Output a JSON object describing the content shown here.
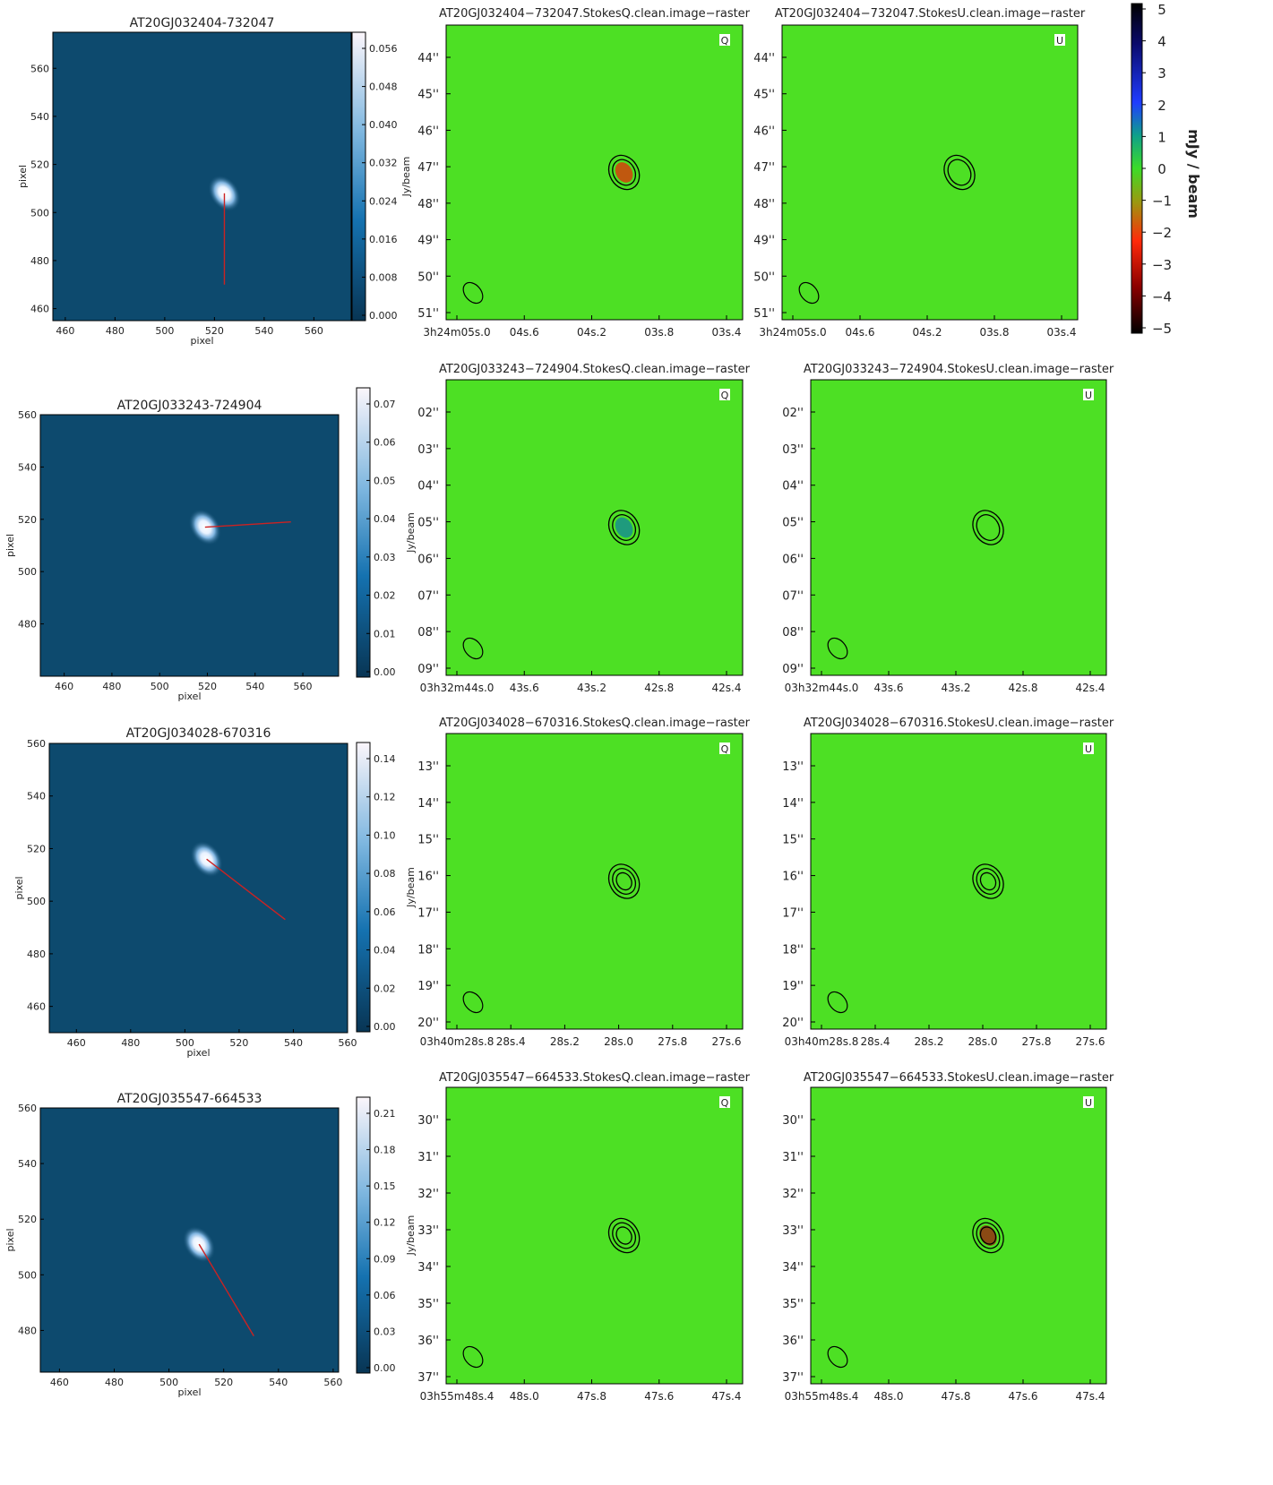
{
  "figure": {
    "colorbar_label": "mJy / beam",
    "colorbar_ticks": [
      "5",
      "4",
      "3",
      "2",
      "1",
      "0",
      "−1",
      "−2",
      "−3",
      "−4",
      "−5"
    ],
    "pixel_label": "pixel",
    "jy_label": "Jy/beam",
    "q_badge": "Q",
    "u_badge": "U"
  },
  "rows": [
    {
      "source": "AT20GJ032404-732047",
      "left": {
        "title": "AT20GJ032404-732047",
        "xticks": [
          "460",
          "480",
          "500",
          "520",
          "540",
          "560"
        ],
        "yticks": [
          "560",
          "540",
          "520",
          "500",
          "480",
          "460"
        ],
        "cbar_ticks": [
          "0.056",
          "0.048",
          "0.040",
          "0.032",
          "0.024",
          "0.016",
          "0.008",
          "0.000"
        ]
      },
      "q_title": "AT20GJ032404−732047.StokesQ.clean.image−raster",
      "u_title": "AT20GJ032404−732047.StokesU.clean.image−raster",
      "dec_ticks": [
        "44''",
        "45''",
        "46''",
        "47''",
        "48''",
        "49''",
        "50''",
        "51''"
      ],
      "ra_ticks": [
        "3h24m05s.0",
        "04s.6",
        "04s.2",
        "03s.8",
        "03s.4"
      ]
    },
    {
      "source": "AT20GJ033243-724904",
      "left": {
        "title": "AT20GJ033243-724904",
        "xticks": [
          "460",
          "480",
          "500",
          "520",
          "540",
          "560"
        ],
        "yticks": [
          "560",
          "540",
          "520",
          "500",
          "480"
        ],
        "cbar_ticks": [
          "0.07",
          "0.06",
          "0.05",
          "0.04",
          "0.03",
          "0.02",
          "0.01",
          "0.00"
        ]
      },
      "q_title": "AT20GJ033243−724904.StokesQ.clean.image−raster",
      "u_title": "AT20GJ033243−724904.StokesU.clean.image−raster",
      "dec_ticks": [
        "02''",
        "03''",
        "04''",
        "05''",
        "06''",
        "07''",
        "08''",
        "09''"
      ],
      "ra_ticks": [
        "03h32m44s.0",
        "43s.6",
        "43s.2",
        "42s.8",
        "42s.4"
      ]
    },
    {
      "source": "AT20GJ034028-670316",
      "left": {
        "title": "AT20GJ034028-670316",
        "xticks": [
          "460",
          "480",
          "500",
          "520",
          "540",
          "560"
        ],
        "yticks": [
          "560",
          "540",
          "520",
          "500",
          "480",
          "460"
        ],
        "cbar_ticks": [
          "0.14",
          "0.12",
          "0.10",
          "0.08",
          "0.06",
          "0.04",
          "0.02",
          "0.00"
        ]
      },
      "q_title": "AT20GJ034028−670316.StokesQ.clean.image−raster",
      "u_title": "AT20GJ034028−670316.StokesU.clean.image−raster",
      "dec_ticks": [
        "13''",
        "14''",
        "15''",
        "16''",
        "17''",
        "18''",
        "19''",
        "20''"
      ],
      "ra_ticks": [
        "03h40m28s.8",
        "28s.4",
        "28s.2",
        "28s.0",
        "27s.8",
        "27s.6"
      ]
    },
    {
      "source": "AT20GJ035547-664533",
      "left": {
        "title": "AT20GJ035547-664533",
        "xticks": [
          "460",
          "480",
          "500",
          "520",
          "540",
          "560"
        ],
        "yticks": [
          "560",
          "540",
          "520",
          "500",
          "480"
        ],
        "cbar_ticks": [
          "0.21",
          "0.18",
          "0.15",
          "0.12",
          "0.09",
          "0.06",
          "0.03",
          "0.00"
        ]
      },
      "q_title": "AT20GJ035547−664533.StokesQ.clean.image−raster",
      "u_title": "AT20GJ035547−664533.StokesU.clean.image−raster",
      "dec_ticks": [
        "30''",
        "31''",
        "32''",
        "33''",
        "34''",
        "35''",
        "36''",
        "37''"
      ],
      "ra_ticks": [
        "03h55m48s.4",
        "48s.0",
        "47s.8",
        "47s.6",
        "47s.4"
      ]
    }
  ],
  "colors": {
    "map_background": "#0d4a6e",
    "stokes_background": "#4de024",
    "source_core": "#ffffff",
    "vector": "#cc2222",
    "contour": "#000000",
    "q_core_row1": "#c0580f",
    "q_core_row2": "#1f9b7d",
    "u_core_row4": "#8a4a14"
  },
  "chart_data": [
    {
      "type": "heatmap",
      "title": "AT20GJ032404-732047",
      "xlabel": "pixel",
      "ylabel": "pixel",
      "xlim": [
        455,
        575
      ],
      "ylim": [
        455,
        575
      ],
      "source_peak": {
        "x": 524,
        "y": 508
      },
      "vector_end": {
        "x": 524,
        "y": 470
      },
      "cbar_label": "Jy/beam",
      "cbar_range": [
        0,
        0.06
      ]
    },
    {
      "type": "heatmap",
      "title": "AT20GJ033243-724904",
      "xlabel": "pixel",
      "ylabel": "pixel",
      "xlim": [
        450,
        575
      ],
      "ylim": [
        460,
        560
      ],
      "source_peak": {
        "x": 519,
        "y": 517
      },
      "vector_end": {
        "x": 555,
        "y": 519
      },
      "cbar_label": "Jy/beam",
      "cbar_range": [
        0,
        0.075
      ]
    },
    {
      "type": "heatmap",
      "title": "AT20GJ034028-670316",
      "xlabel": "pixel",
      "ylabel": "pixel",
      "xlim": [
        450,
        560
      ],
      "ylim": [
        450,
        560
      ],
      "source_peak": {
        "x": 508,
        "y": 516
      },
      "vector_end": {
        "x": 537,
        "y": 493
      },
      "cbar_label": "Jy/beam",
      "cbar_range": [
        0,
        0.145
      ]
    },
    {
      "type": "heatmap",
      "title": "AT20GJ035547-664533",
      "xlabel": "pixel",
      "ylabel": "pixel",
      "xlim": [
        453,
        562
      ],
      "ylim": [
        465,
        560
      ],
      "source_peak": {
        "x": 511,
        "y": 511
      },
      "vector_end": {
        "x": 531,
        "y": 478
      },
      "cbar_label": "Jy/beam",
      "cbar_range": [
        0,
        0.23
      ]
    }
  ]
}
